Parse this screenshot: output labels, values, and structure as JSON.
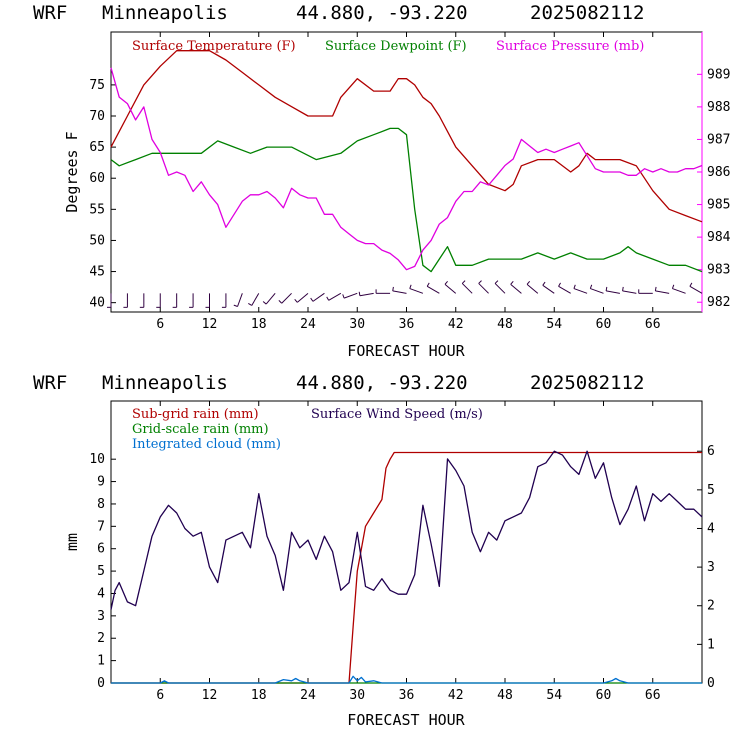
{
  "chart_data": [
    {
      "type": "line",
      "header": {
        "model": "WRF",
        "location": "Minneapolis",
        "coords": "44.880, -93.220",
        "run": "2025082112"
      },
      "xlabel": "FORECAST HOUR",
      "ylabel": "Degrees F",
      "xlim": [
        0,
        72
      ],
      "xticks": [
        6,
        12,
        18,
        24,
        30,
        36,
        42,
        48,
        54,
        60,
        66
      ],
      "xtick_labels": [
        "6",
        "12",
        "18",
        "24",
        "30",
        "36",
        "42",
        "48",
        "54",
        "60",
        "66"
      ],
      "ylim": [
        38.5,
        83.5
      ],
      "yticks": [
        40,
        45,
        50,
        55,
        60,
        65,
        70,
        75
      ],
      "ytick_labels": [
        "40",
        "45",
        "50",
        "55",
        "60",
        "65",
        "70",
        "75"
      ],
      "y2lim": [
        981.7,
        990.3
      ],
      "y2ticks": [
        982,
        983,
        984,
        985,
        986,
        987,
        988,
        989
      ],
      "y2tick_labels": [
        "982",
        "983",
        "984",
        "985",
        "986",
        "987",
        "988",
        "989"
      ],
      "y2color": "#ff00ff",
      "grid": false,
      "legend_position": "top",
      "series": [
        {
          "name": "Surface Temperature (F)",
          "color": "#b00000",
          "axis": "left",
          "x": [
            0,
            2,
            4,
            6,
            8,
            10,
            12,
            14,
            16,
            18,
            20,
            22,
            24,
            26,
            27,
            28,
            30,
            32,
            34,
            35,
            36,
            37,
            38,
            39,
            40,
            42,
            44,
            46,
            48,
            49,
            50,
            52,
            54,
            56,
            57,
            58,
            59,
            60,
            62,
            64,
            66,
            68,
            70,
            72
          ],
          "y": [
            65,
            70,
            75,
            78,
            80.5,
            80.5,
            80.5,
            79,
            77,
            75,
            73,
            71.5,
            70,
            70,
            70,
            73,
            76,
            74,
            74,
            76,
            76,
            75,
            73,
            72,
            70,
            65,
            62,
            59,
            58,
            59,
            62,
            63,
            63,
            61,
            62,
            64,
            63,
            63,
            63,
            62,
            58,
            55,
            54,
            53
          ]
        },
        {
          "name": "Surface Dewpoint (F)",
          "color": "#008000",
          "axis": "left",
          "x": [
            0,
            1,
            3,
            5,
            8,
            11,
            13,
            15,
            17,
            19,
            22,
            25,
            28,
            30,
            32,
            34,
            35,
            36,
            37,
            38,
            39,
            40,
            41,
            42,
            44,
            46,
            48,
            50,
            52,
            54,
            56,
            58,
            60,
            62,
            63,
            64,
            66,
            68,
            70,
            72
          ],
          "y": [
            63,
            62,
            63,
            64,
            64,
            64,
            66,
            65,
            64,
            65,
            65,
            63,
            64,
            66,
            67,
            68,
            68,
            67,
            55,
            46,
            45,
            47,
            49,
            46,
            46,
            47,
            47,
            47,
            48,
            47,
            48,
            47,
            47,
            48,
            49,
            48,
            47,
            46,
            46,
            45
          ]
        },
        {
          "name": "Surface Pressure (mb)",
          "color": "#e000e0",
          "axis": "right",
          "x": [
            0,
            1,
            2,
            3,
            4,
            5,
            6,
            7,
            8,
            9,
            10,
            11,
            12,
            13,
            14,
            15,
            16,
            17,
            18,
            19,
            20,
            21,
            22,
            23,
            24,
            25,
            26,
            27,
            28,
            29,
            30,
            31,
            32,
            33,
            34,
            35,
            36,
            37,
            38,
            39,
            40,
            41,
            42,
            43,
            44,
            45,
            46,
            47,
            48,
            49,
            50,
            51,
            52,
            53,
            54,
            55,
            56,
            57,
            58,
            59,
            60,
            61,
            62,
            63,
            64,
            65,
            66,
            67,
            68,
            69,
            70,
            71,
            72
          ],
          "y": [
            989.2,
            988.3,
            988.1,
            987.6,
            988.0,
            987.0,
            986.6,
            985.9,
            986.0,
            985.9,
            985.4,
            985.7,
            985.3,
            985.0,
            984.3,
            984.7,
            985.1,
            985.3,
            985.3,
            985.4,
            985.2,
            984.9,
            985.5,
            985.3,
            985.2,
            985.2,
            984.7,
            984.7,
            984.3,
            984.1,
            983.9,
            983.8,
            983.8,
            983.6,
            983.5,
            983.3,
            983.0,
            983.1,
            983.6,
            983.9,
            984.4,
            984.6,
            985.1,
            985.4,
            985.4,
            985.7,
            985.6,
            985.9,
            986.2,
            986.4,
            987.0,
            986.8,
            986.6,
            986.7,
            986.6,
            986.7,
            986.8,
            986.9,
            986.5,
            986.1,
            986.0,
            986.0,
            986.0,
            985.9,
            985.9,
            986.1,
            986.0,
            986.1,
            986.0,
            986.0,
            986.1,
            986.1,
            986.2
          ]
        }
      ],
      "wind_barbs": {
        "y_level": 41.5,
        "x": [
          0,
          2,
          4,
          6,
          8,
          10,
          12,
          14,
          16,
          18,
          20,
          22,
          24,
          26,
          28,
          30,
          32,
          34,
          36,
          38,
          40,
          42,
          44,
          46,
          48,
          50,
          52,
          54,
          56,
          58,
          60,
          62,
          64,
          66,
          68,
          70,
          72
        ],
        "direction_deg": [
          180,
          180,
          180,
          180,
          180,
          180,
          180,
          180,
          200,
          210,
          220,
          225,
          230,
          235,
          240,
          250,
          260,
          270,
          280,
          290,
          300,
          310,
          315,
          315,
          315,
          310,
          310,
          305,
          300,
          290,
          290,
          280,
          280,
          270,
          280,
          290,
          300
        ]
      }
    },
    {
      "type": "line",
      "header": {
        "model": "WRF",
        "location": "Minneapolis",
        "coords": "44.880, -93.220",
        "run": "2025082112"
      },
      "xlabel": "FORECAST HOUR",
      "ylabel": "mm",
      "xlim": [
        0,
        72
      ],
      "xticks": [
        6,
        12,
        18,
        24,
        30,
        36,
        42,
        48,
        54,
        60,
        66
      ],
      "xtick_labels": [
        "6",
        "12",
        "18",
        "24",
        "30",
        "36",
        "42",
        "48",
        "54",
        "60",
        "66"
      ],
      "ylim": [
        0,
        12.6
      ],
      "yticks": [
        0,
        1,
        2,
        3,
        4,
        5,
        6,
        7,
        8,
        9,
        10
      ],
      "ytick_labels": [
        "0",
        "1",
        "2",
        "3",
        "4",
        "5",
        "6",
        "7",
        "8",
        "9",
        "10"
      ],
      "y2lim": [
        0,
        7.3
      ],
      "y2ticks": [
        0,
        1,
        2,
        3,
        4,
        5,
        6
      ],
      "y2tick_labels": [
        "0",
        "1",
        "2",
        "3",
        "4",
        "5",
        "6"
      ],
      "grid": false,
      "legend_position": "top-left",
      "series": [
        {
          "name": "Sub-grid rain (mm)",
          "color": "#b00000",
          "axis": "left",
          "x": [
            0,
            29,
            29.5,
            30,
            30.5,
            31,
            32,
            33,
            33.5,
            34,
            34.5,
            35,
            72
          ],
          "y": [
            0,
            0,
            2.5,
            5,
            6,
            7,
            7.6,
            8.2,
            9.6,
            10,
            10.3,
            10.3,
            10.3
          ]
        },
        {
          "name": "Grid-scale rain (mm)",
          "color": "#008000",
          "axis": "left",
          "x": [
            0,
            72
          ],
          "y": [
            0,
            0
          ]
        },
        {
          "name": "Integrated cloud (mm)",
          "color": "#0070d0",
          "axis": "left",
          "x": [
            0,
            6,
            6.5,
            7,
            20,
            21,
            22,
            22.5,
            23,
            24,
            29,
            29.5,
            30,
            30.5,
            31,
            32,
            33,
            60,
            61,
            61.5,
            62,
            63,
            72
          ],
          "y": [
            0,
            0,
            0.1,
            0,
            0,
            0.15,
            0.1,
            0.2,
            0.1,
            0,
            0,
            0.3,
            0.1,
            0.25,
            0.05,
            0.1,
            0,
            0,
            0.1,
            0.2,
            0.1,
            0,
            0
          ]
        },
        {
          "name": "Surface Wind Speed (m/s)",
          "color": "#200050",
          "axis": "right",
          "x": [
            0,
            0.5,
            1,
            2,
            3,
            4,
            5,
            6,
            7,
            8,
            9,
            10,
            11,
            12,
            13,
            14,
            15,
            16,
            17,
            18,
            19,
            20,
            21,
            22,
            23,
            24,
            25,
            26,
            27,
            28,
            29,
            30,
            31,
            32,
            33,
            34,
            35,
            36,
            37,
            38,
            39,
            40,
            41,
            42,
            43,
            44,
            45,
            46,
            47,
            48,
            49,
            50,
            51,
            52,
            53,
            54,
            55,
            56,
            57,
            58,
            59,
            60,
            61,
            62,
            63,
            64,
            65,
            66,
            67,
            68,
            69,
            70,
            71,
            72
          ],
          "y": [
            1.9,
            2.4,
            2.6,
            2.1,
            2.0,
            2.9,
            3.8,
            4.3,
            4.6,
            4.4,
            4.0,
            3.8,
            3.9,
            3.0,
            2.6,
            3.7,
            3.8,
            3.9,
            3.5,
            4.9,
            3.8,
            3.3,
            2.4,
            3.9,
            3.5,
            3.7,
            3.2,
            3.8,
            3.4,
            2.4,
            2.6,
            3.9,
            2.5,
            2.4,
            2.7,
            2.4,
            2.3,
            2.3,
            2.8,
            4.6,
            3.6,
            2.5,
            5.8,
            5.5,
            5.1,
            3.9,
            3.4,
            3.9,
            3.7,
            4.2,
            4.3,
            4.4,
            4.8,
            5.6,
            5.7,
            6.0,
            5.9,
            5.6,
            5.4,
            6.0,
            5.3,
            5.7,
            4.8,
            4.1,
            4.5,
            5.1,
            4.2,
            4.9,
            4.7,
            4.9,
            4.7,
            4.5,
            4.5,
            4.3
          ]
        }
      ]
    }
  ]
}
